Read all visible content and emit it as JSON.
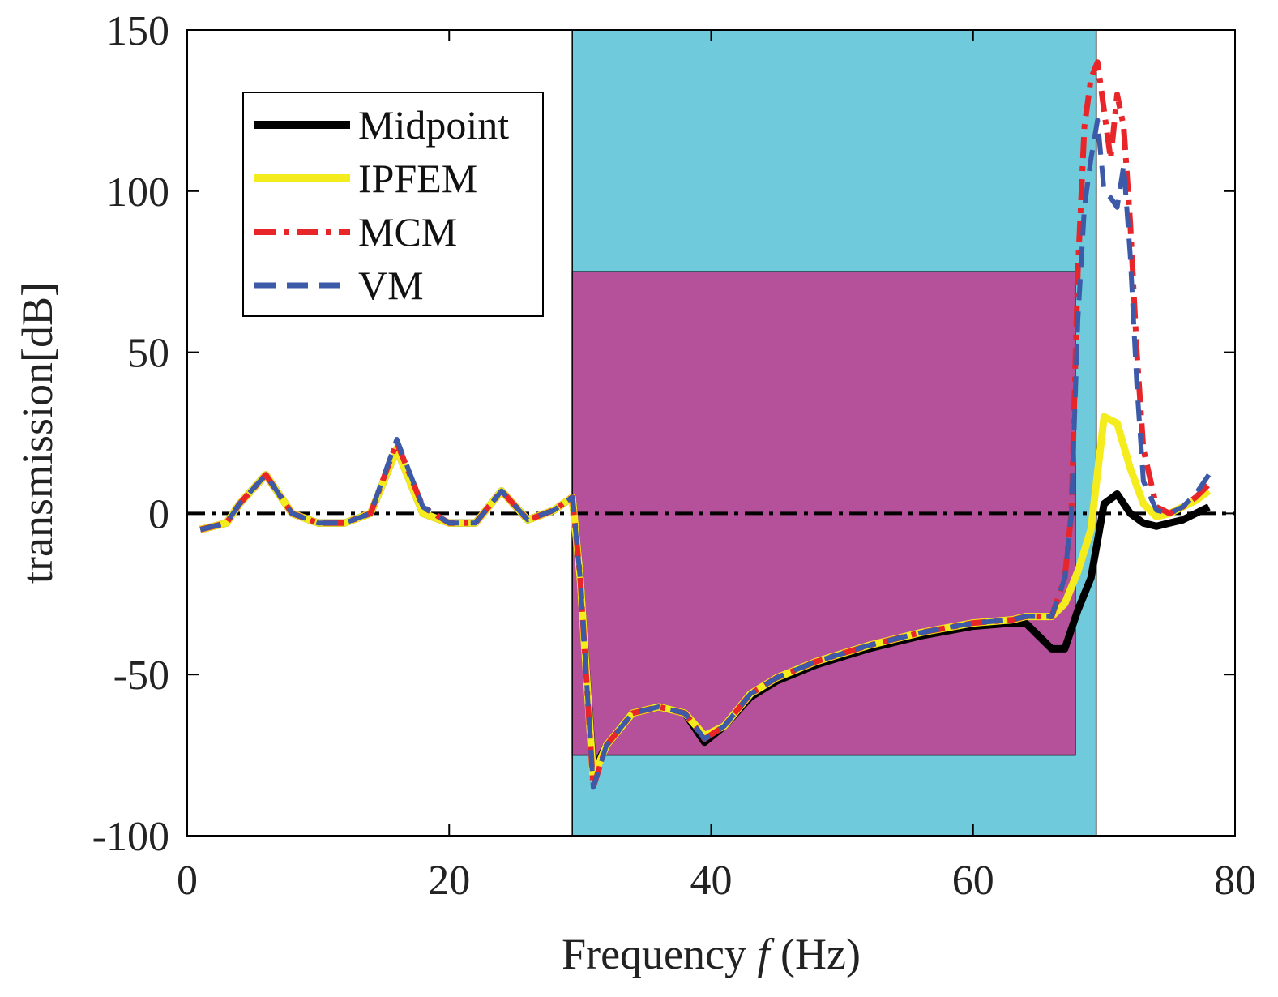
{
  "chart_data": {
    "type": "line",
    "title": "",
    "xlabel": {
      "prefix": "Frequency ",
      "var": "f",
      "suffix": " (Hz)"
    },
    "ylabel": "transmission[dB]",
    "xlim": [
      0,
      80
    ],
    "ylim": [
      -100,
      150
    ],
    "xticks": [
      0,
      20,
      40,
      60,
      80
    ],
    "yticks": [
      -100,
      -50,
      0,
      50,
      100,
      150
    ],
    "grid": false,
    "legend_position": "top-left",
    "bands": [
      {
        "name": "outer-band",
        "x": [
          29.4,
          69.4
        ],
        "y": [
          -100,
          150
        ],
        "color": "#6fcbdc"
      },
      {
        "name": "inner-band",
        "x": [
          29.4,
          67.8
        ],
        "y": [
          -75,
          75
        ],
        "color": "#b5519a"
      }
    ],
    "reference_line": {
      "y": 0,
      "color": "#000000",
      "style": "dash-dot"
    },
    "series": [
      {
        "name": "Midpoint",
        "color": "#000000",
        "style": "solid",
        "x": [
          1,
          3,
          4,
          6,
          8,
          10,
          12,
          14,
          16,
          18,
          20,
          22,
          24,
          26,
          28,
          29.4,
          30,
          31,
          32,
          34,
          36,
          38,
          39.5,
          41,
          43,
          45,
          48,
          52,
          56,
          60,
          63,
          64,
          65,
          66,
          67,
          68,
          69,
          70,
          71,
          72,
          73,
          74,
          75,
          76,
          77,
          78
        ],
        "y": [
          -5,
          -3,
          3,
          12,
          0,
          -3,
          -3,
          0,
          20,
          0,
          -3,
          -3,
          7,
          -2,
          1,
          5,
          -20,
          -80,
          -72,
          -62,
          -60,
          -62,
          -71,
          -66,
          -57,
          -52,
          -47,
          -42,
          -38,
          -35,
          -34,
          -34,
          -38,
          -42,
          -42,
          -30,
          -20,
          3,
          6,
          0,
          -3,
          -4,
          -3,
          -2,
          0,
          2
        ]
      },
      {
        "name": "IPFEM",
        "color": "#f5ec1e",
        "style": "solid",
        "x": [
          1,
          3,
          4,
          6,
          8,
          10,
          12,
          14,
          16,
          18,
          20,
          22,
          24,
          26,
          28,
          29.4,
          30,
          31,
          32,
          34,
          36,
          38,
          39.5,
          41,
          43,
          45,
          48,
          52,
          56,
          60,
          63,
          64,
          65,
          66,
          67,
          68,
          69,
          70,
          71,
          72,
          73,
          74,
          75,
          76,
          77,
          78
        ],
        "y": [
          -5,
          -3,
          3,
          12,
          0,
          -3,
          -3,
          0,
          20,
          0,
          -3,
          -3,
          7,
          -2,
          1,
          5,
          -20,
          -82,
          -72,
          -62,
          -60,
          -62,
          -69,
          -66,
          -56,
          -51,
          -46,
          -41,
          -37,
          -34,
          -33,
          -32,
          -32,
          -32,
          -28,
          -18,
          -5,
          30,
          28,
          14,
          3,
          -1,
          0,
          2,
          4,
          7
        ]
      },
      {
        "name": "MCM",
        "color": "#e8262a",
        "style": "dash-dot",
        "x": [
          1,
          3,
          4,
          6,
          8,
          10,
          12,
          14,
          16,
          18,
          20,
          22,
          24,
          26,
          28,
          29.4,
          30,
          31,
          32,
          34,
          36,
          38,
          39.5,
          41,
          43,
          45,
          48,
          52,
          56,
          60,
          63,
          64,
          65,
          66,
          67,
          67.5,
          68,
          68.5,
          69,
          69.5,
          70,
          70.5,
          71,
          71.5,
          72,
          72.5,
          73,
          74,
          75,
          76,
          77,
          78
        ],
        "y": [
          -5,
          -3,
          3,
          12,
          0,
          -3,
          -3,
          0,
          22,
          2,
          -3,
          -3,
          7,
          -2,
          1,
          5,
          -20,
          -85,
          -72,
          -62,
          -60,
          -62,
          -70,
          -66,
          -56,
          -51,
          -46,
          -41,
          -37,
          -34,
          -33,
          -32,
          -32,
          -32,
          -20,
          0,
          75,
          120,
          135,
          140,
          125,
          110,
          130,
          120,
          90,
          50,
          20,
          2,
          0,
          2,
          5,
          9
        ]
      },
      {
        "name": "VM",
        "color": "#3d5aa8",
        "style": "dashed",
        "x": [
          1,
          3,
          4,
          6,
          8,
          10,
          12,
          14,
          16,
          18,
          20,
          22,
          24,
          26,
          28,
          29.4,
          30,
          31,
          32,
          34,
          36,
          38,
          39.5,
          41,
          43,
          45,
          48,
          52,
          56,
          60,
          63,
          64,
          65,
          66,
          67,
          67.5,
          68,
          68.5,
          69,
          69.5,
          70,
          70.5,
          71,
          71.5,
          72,
          72.5,
          73,
          74,
          75,
          76,
          77,
          78
        ],
        "y": [
          -5,
          -3,
          3,
          12,
          0,
          -3,
          -3,
          0,
          23,
          2,
          -3,
          -3,
          7,
          -2,
          1,
          5,
          -20,
          -85,
          -72,
          -62,
          -60,
          -62,
          -70,
          -66,
          -56,
          -51,
          -46,
          -41,
          -37,
          -34,
          -33,
          -32,
          -32,
          -32,
          -20,
          0,
          60,
          95,
          110,
          122,
          100,
          98,
          95,
          108,
          80,
          40,
          10,
          1,
          0,
          2,
          6,
          12
        ]
      }
    ]
  }
}
